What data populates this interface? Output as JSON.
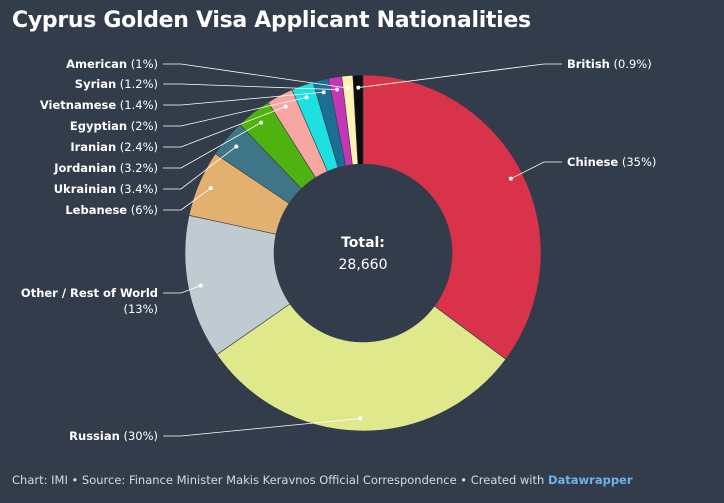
{
  "title": "Cyprus Golden Visa Applicant Nationalities",
  "footer": {
    "text": "Chart: IMI • Source: Finance Minister Makis Keravnos Official Correspondence • Created with ",
    "brand": "Datawrapper"
  },
  "chart_data": {
    "type": "pie",
    "variant": "donut",
    "center_label": "Total:",
    "center_value": "28,660",
    "slices": [
      {
        "name": "Chinese",
        "label": "(35%)",
        "value": 35,
        "color": "#d8334a"
      },
      {
        "name": "Russian",
        "label": "(30%)",
        "value": 30,
        "color": "#dfe98c"
      },
      {
        "name": "Other / Rest of World",
        "label": "(13%)",
        "value": 13,
        "color": "#bfcbd0"
      },
      {
        "name": "Lebanese",
        "label": "(6%)",
        "value": 6,
        "color": "#e2b06f"
      },
      {
        "name": "Ukrainian",
        "label": "(3.4%)",
        "value": 3.4,
        "color": "#3e7688"
      },
      {
        "name": "Jordanian",
        "label": "(3.2%)",
        "value": 3.2,
        "color": "#4eb20f"
      },
      {
        "name": "Iranian",
        "label": "(2.4%)",
        "value": 2.4,
        "color": "#f7a7a2"
      },
      {
        "name": "Egyptian",
        "label": "(2%)",
        "value": 2,
        "color": "#1de0e0"
      },
      {
        "name": "Vietnamese",
        "label": "(1.4%)",
        "value": 1.4,
        "color": "#1c6f94"
      },
      {
        "name": "Syrian",
        "label": "(1.2%)",
        "value": 1.2,
        "color": "#c436b7"
      },
      {
        "name": "American",
        "label": "(1%)",
        "value": 1,
        "color": "#fff2b3"
      },
      {
        "name": "British",
        "label": "(0.9%)",
        "value": 0.9,
        "color": "#0d0d0d"
      }
    ],
    "legend": "none"
  }
}
